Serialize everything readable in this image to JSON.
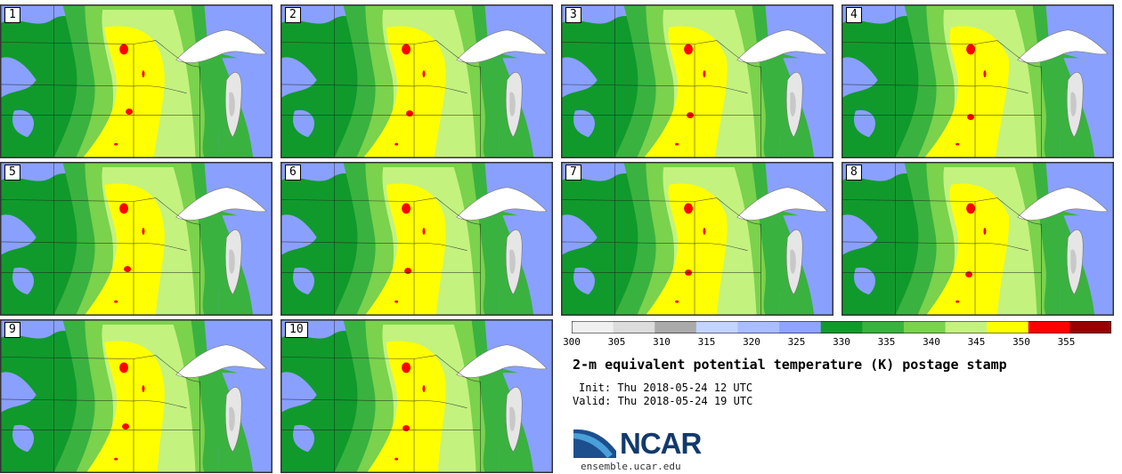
{
  "panels": [
    "1",
    "2",
    "3",
    "4",
    "5",
    "6",
    "7",
    "8",
    "9",
    "10"
  ],
  "colorbar": {
    "ticks": [
      "300",
      "305",
      "310",
      "315",
      "320",
      "325",
      "330",
      "335",
      "340",
      "345",
      "350",
      "355"
    ],
    "colors": [
      "#f0f0f0",
      "#dcdcdc",
      "#aaaaaa",
      "#c3d4ff",
      "#aabdff",
      "#8fa4ff",
      "#109a2c",
      "#3ab23f",
      "#7ad24d",
      "#c3f27f",
      "#ffff00",
      "#ff0000",
      "#990000"
    ]
  },
  "title": "2-m equivalent potential temperature (K) postage stamp",
  "init": "Init: Thu 2018-05-24 12 UTC",
  "valid": "Valid: Thu 2018-05-24 19 UTC",
  "logo": {
    "text": "NCAR",
    "colors": [
      "#1d4f8f",
      "#4aa0d8"
    ]
  },
  "site": "ensemble.ucar.edu"
}
